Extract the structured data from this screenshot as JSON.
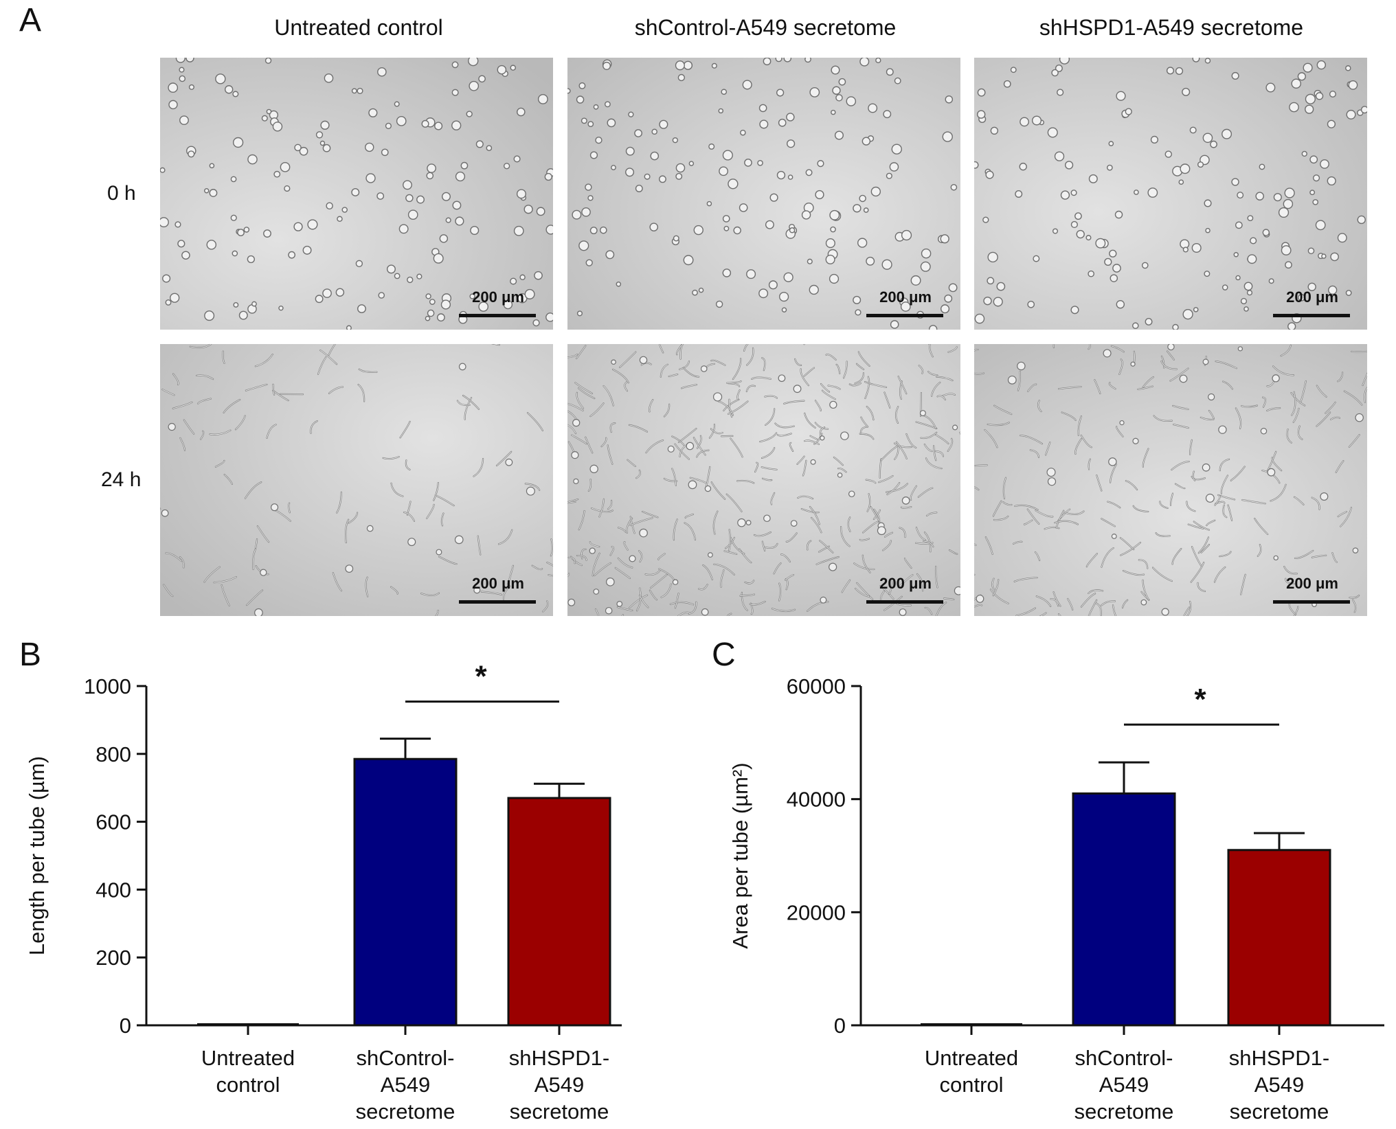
{
  "panel_a": {
    "letter": "A",
    "columns": [
      "Untreated control",
      "shControl-A549 secretome",
      "shHSPD1-A549 secretome"
    ],
    "rows": [
      "0 h",
      "24 h"
    ],
    "scale_bar": "200 μm"
  },
  "panel_b": {
    "letter": "B"
  },
  "panel_c": {
    "letter": "C"
  },
  "chart_data": [
    {
      "type": "bar",
      "categories": [
        [
          "Untreated",
          "control"
        ],
        [
          "shControl-",
          "A549",
          "secretome"
        ],
        [
          "shHSPD1-",
          "A549",
          "secretome"
        ]
      ],
      "values": [
        0,
        785,
        670
      ],
      "errors": [
        0,
        60,
        42
      ],
      "colors": [
        "#ffffff",
        "#00007f",
        "#9b0000"
      ],
      "ylabel": "Length per tube (µm)",
      "ylim": [
        0,
        1000
      ],
      "yticks": [
        "0",
        "200",
        "400",
        "600",
        "800",
        "1000"
      ],
      "significance": {
        "between": [
          1,
          2
        ],
        "label": "*"
      }
    },
    {
      "type": "bar",
      "categories": [
        [
          "Untreated",
          "control"
        ],
        [
          "shControl-",
          "A549",
          "secretome"
        ],
        [
          "shHSPD1-",
          "A549",
          "secretome"
        ]
      ],
      "values": [
        0,
        41000,
        31000
      ],
      "errors": [
        0,
        5500,
        3000
      ],
      "colors": [
        "#ffffff",
        "#00007f",
        "#9b0000"
      ],
      "ylabel": "Area per tube (µm²)",
      "ylim": [
        0,
        60000
      ],
      "yticks": [
        "0",
        "20000",
        "40000",
        "60000"
      ],
      "significance": {
        "between": [
          1,
          2
        ],
        "label": "*"
      }
    }
  ]
}
